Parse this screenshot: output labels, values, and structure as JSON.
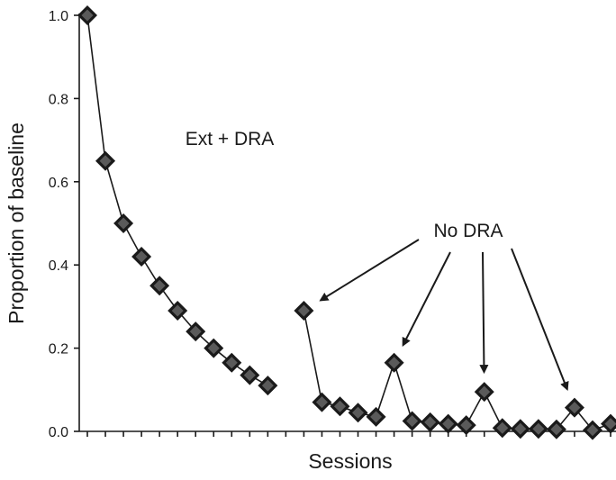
{
  "chart_data": {
    "type": "line",
    "xlabel": "Sessions",
    "ylabel": "Proportion of baseline",
    "ylim": [
      0,
      1
    ],
    "yticks": [
      "0.0",
      "0.2",
      "0.4",
      "0.6",
      "0.8",
      "1.0"
    ],
    "segments": [
      {
        "x": [
          1,
          2,
          3,
          4,
          5,
          6,
          7,
          8,
          9,
          10,
          11
        ],
        "y": [
          1.0,
          0.65,
          0.5,
          0.42,
          0.35,
          0.29,
          0.24,
          0.2,
          0.165,
          0.135,
          0.11
        ]
      },
      {
        "x": [
          13,
          14,
          15,
          16,
          17,
          18,
          19,
          20,
          21,
          22,
          23,
          24,
          25,
          26,
          27,
          28,
          29,
          30
        ],
        "y": [
          0.29,
          0.07,
          0.06,
          0.045,
          0.035,
          0.165,
          0.025,
          0.022,
          0.018,
          0.015,
          0.095,
          0.008,
          0.006,
          0.006,
          0.005,
          0.057,
          0.003,
          0.018
        ]
      }
    ],
    "annotations": {
      "ext_dra": "Ext + DRA",
      "no_dra": "No DRA",
      "no_dra_points": [
        13,
        18,
        23,
        28
      ]
    }
  }
}
